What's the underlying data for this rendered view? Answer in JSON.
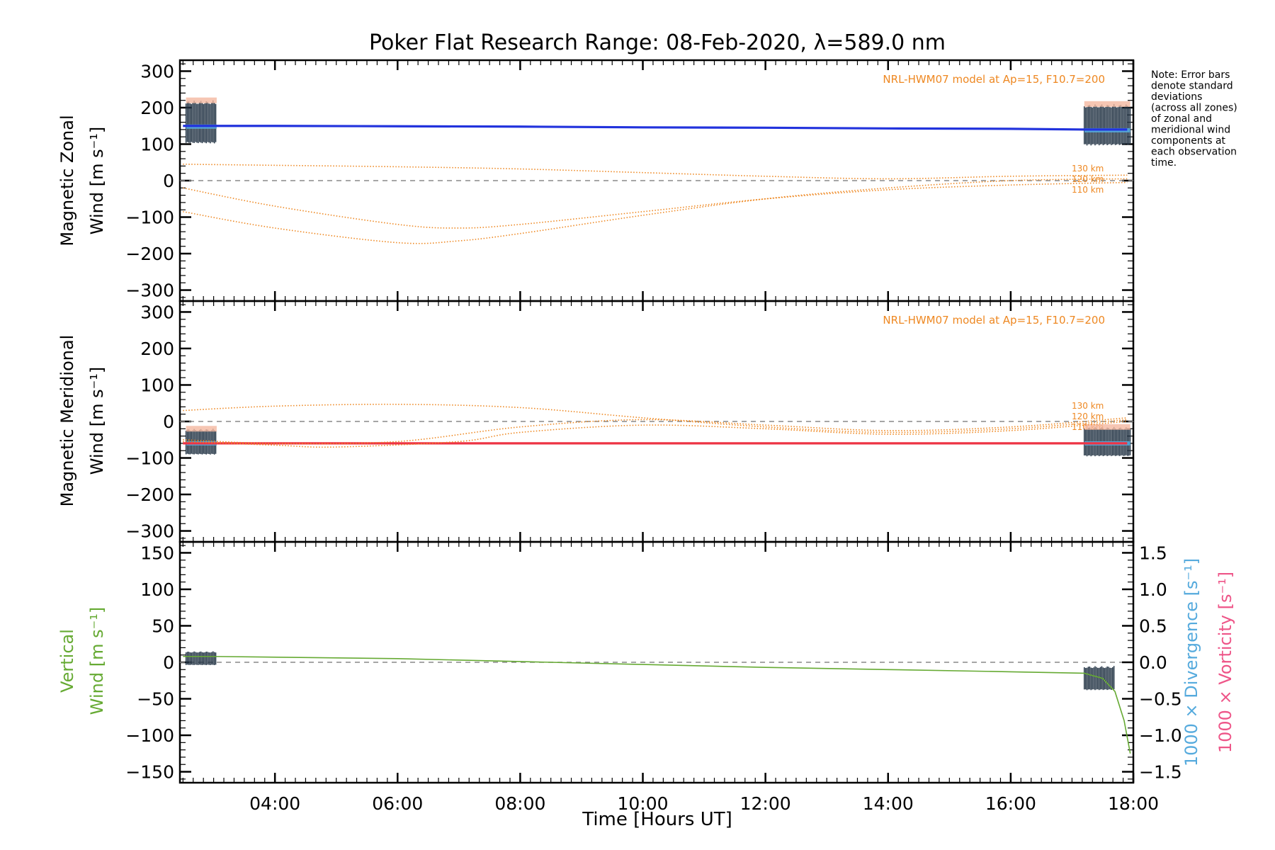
{
  "title": "Poker Flat Research Range: 08-Feb-2020, λ=589.0 nm",
  "note_lines": [
    "Note: Error bars",
    "denote standard",
    "deviations",
    "(across all zones)",
    "of zonal and",
    "meridional wind",
    "components at",
    "each observation",
    "time."
  ],
  "colors": {
    "zonal": "#2233dd",
    "meridional": "#ee3344",
    "vertical": "#66aa33",
    "model": "#ee8822",
    "divergence": "#55aadd",
    "vorticity": "#ee5588",
    "errorbar": "#223344",
    "zero_line": "#888888"
  },
  "chart_data": [
    {
      "type": "line",
      "panel": "zonal",
      "ylabel_line1": "Magnetic Zonal",
      "ylabel_line2": "Wind [m s⁻¹]",
      "ylim": [
        -330,
        330
      ],
      "yticks": [
        300,
        200,
        100,
        0,
        -100,
        -200,
        -300
      ],
      "ytick_labels": [
        "300",
        "200",
        "100",
        "0",
        "−100",
        "−200",
        "−300"
      ],
      "model_label": "NRL-HWM07 model at Ap=15, F10.7=200",
      "altitude_labels": [
        "130 km",
        "120 km",
        "110 km"
      ],
      "series": [
        {
          "kind": "measured",
          "x": [
            2.5,
            3.0,
            4.0,
            6.0,
            8.0,
            10.0,
            12.0,
            14.0,
            16.0,
            17.2,
            17.9
          ],
          "values": [
            150,
            150,
            150,
            149,
            148,
            146,
            145,
            143,
            142,
            140,
            140
          ]
        },
        {
          "kind": "model",
          "x": [
            2.5,
            4.0,
            6.0,
            7.0,
            8.0,
            10.0,
            12.0,
            14.0,
            16.0,
            17.9
          ],
          "values": [
            -85,
            -130,
            -170,
            -165,
            -145,
            -95,
            -50,
            -20,
            0,
            5
          ]
        },
        {
          "kind": "model",
          "x": [
            2.5,
            4.0,
            6.0,
            7.0,
            8.0,
            10.0,
            12.0,
            14.0,
            16.0,
            17.9
          ],
          "values": [
            -20,
            -70,
            -120,
            -130,
            -120,
            -85,
            -50,
            -25,
            -12,
            -5
          ]
        },
        {
          "kind": "model",
          "x": [
            2.5,
            4.0,
            6.0,
            8.0,
            10.0,
            12.0,
            14.0,
            16.0,
            17.9
          ],
          "values": [
            45,
            42,
            38,
            32,
            22,
            12,
            5,
            12,
            15
          ]
        }
      ],
      "errorbars": [
        {
          "x0": 2.55,
          "x1": 3.05,
          "center": 148,
          "low": 95,
          "high": 220
        },
        {
          "x0": 17.2,
          "x1": 17.95,
          "center": 138,
          "low": 90,
          "high": 210
        }
      ]
    },
    {
      "type": "line",
      "panel": "meridional",
      "ylabel_line1": "Magnetic Meridional",
      "ylabel_line2": "Wind [m s⁻¹]",
      "ylim": [
        -330,
        330
      ],
      "yticks": [
        300,
        200,
        100,
        0,
        -100,
        -200,
        -300
      ],
      "ytick_labels": [
        "300",
        "200",
        "100",
        "0",
        "−100",
        "−200",
        "−300"
      ],
      "model_label": "NRL-HWM07 model at Ap=15, F10.7=200",
      "altitude_labels": [
        "130 km",
        "120 km",
        "110 km"
      ],
      "series": [
        {
          "kind": "measured",
          "x": [
            2.5,
            3.0,
            6.0,
            10.0,
            14.0,
            17.2,
            17.9
          ],
          "values": [
            -60,
            -60,
            -60,
            -60,
            -60,
            -60,
            -60
          ]
        },
        {
          "kind": "model",
          "x": [
            2.5,
            4.0,
            6.0,
            8.0,
            10.0,
            12.0,
            14.0,
            16.0,
            17.9
          ],
          "values": [
            30,
            42,
            47,
            38,
            10,
            -15,
            -30,
            -20,
            5
          ]
        },
        {
          "kind": "model",
          "x": [
            2.5,
            4.0,
            5.0,
            7.0,
            8.0,
            10.0,
            12.0,
            14.0,
            16.0,
            17.9
          ],
          "values": [
            -55,
            -65,
            -70,
            -55,
            -30,
            -10,
            -20,
            -35,
            -25,
            0
          ]
        },
        {
          "kind": "model",
          "x": [
            2.5,
            4.0,
            6.0,
            8.0,
            10.0,
            12.0,
            14.0,
            16.0,
            17.9
          ],
          "values": [
            -50,
            -60,
            -55,
            -15,
            5,
            -10,
            -25,
            -15,
            10
          ]
        }
      ],
      "errorbars": [
        {
          "x0": 2.55,
          "x1": 3.05,
          "center": -60,
          "low": -95,
          "high": -20
        },
        {
          "x0": 17.2,
          "x1": 17.95,
          "center": -60,
          "low": -100,
          "high": -15
        }
      ]
    },
    {
      "type": "line",
      "panel": "vertical",
      "ylabel_line1": "Vertical",
      "ylabel_line2": "Wind [m s⁻¹]",
      "ylim": [
        -165,
        165
      ],
      "yticks": [
        150,
        100,
        50,
        0,
        -50,
        -100,
        -150
      ],
      "ytick_labels": [
        "150",
        "100",
        "50",
        "0",
        "−50",
        "−100",
        "−150"
      ],
      "y2lim": [
        -1.65,
        1.65
      ],
      "y2ticks": [
        1.5,
        1.0,
        0.5,
        0.0,
        -0.5,
        -1.0,
        -1.5
      ],
      "y2tick_labels": [
        "1.5",
        "1.0",
        "0.5",
        "0.0",
        "−0.5",
        "−1.0",
        "−1.5"
      ],
      "y2label_divergence": "1000 × Divergence [s⁻¹]",
      "y2label_vorticity": "1000 × Vorticity [s⁻¹]",
      "series": [
        {
          "kind": "vertical",
          "x": [
            2.5,
            3.0,
            6.0,
            8.0,
            10.0,
            12.0,
            14.0,
            16.0,
            17.2,
            17.5,
            17.7,
            17.85,
            17.95
          ],
          "values": [
            8,
            8,
            5,
            1,
            -3,
            -7,
            -10,
            -13,
            -15,
            -22,
            -40,
            -80,
            -125
          ]
        }
      ],
      "errorbars": [
        {
          "x0": 2.55,
          "x1": 3.05,
          "center": 6,
          "low": -5,
          "high": 15
        },
        {
          "x0": 17.2,
          "x1": 17.7,
          "center": -20,
          "low": -40,
          "high": -5
        }
      ]
    }
  ],
  "x_axis": {
    "xlim": [
      2.45,
      18.0
    ],
    "ticks": [
      4,
      6,
      8,
      10,
      12,
      14,
      16,
      18
    ],
    "tick_labels": [
      "04:00",
      "06:00",
      "08:00",
      "10:00",
      "12:00",
      "14:00",
      "16:00",
      "18:00"
    ],
    "label": "Time [Hours UT]"
  }
}
